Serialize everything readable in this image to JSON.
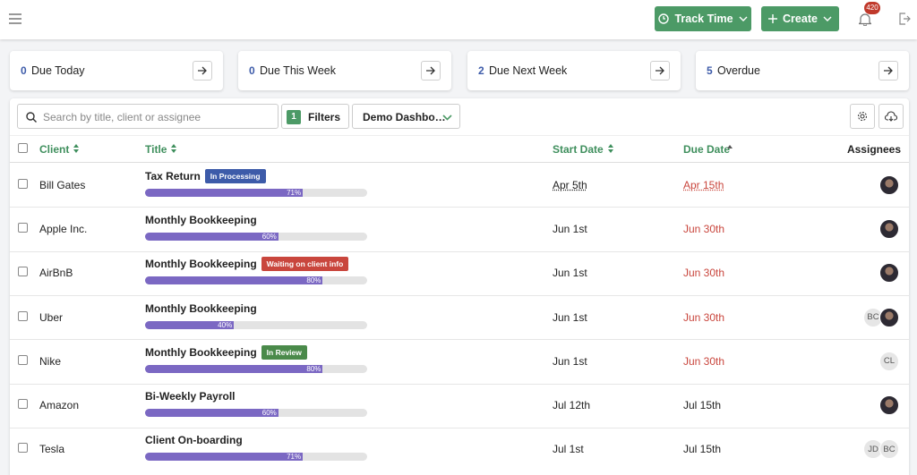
{
  "header": {
    "track_time": "Track Time",
    "create": "Create",
    "notification_count": 420
  },
  "summary": [
    {
      "count": 0,
      "label": "Due Today"
    },
    {
      "count": 0,
      "label": "Due This Week"
    },
    {
      "count": 2,
      "label": "Due Next Week"
    },
    {
      "count": 5,
      "label": "Overdue"
    }
  ],
  "toolbar": {
    "search_placeholder": "Search by title, client or assignee",
    "filter_count": 1,
    "filters": "Filters",
    "dashboard": "Demo Dashbo…"
  },
  "table": {
    "columns": [
      "Client",
      "Title",
      "Start Date",
      "Due Date",
      "Assignees"
    ],
    "rows": [
      {
        "client": "Bill Gates",
        "title": "Tax Return",
        "status": "In Processing",
        "progress": 71,
        "progress_label": "71%",
        "start_date": "Apr 5th",
        "due_date": "Apr 15th"
      },
      {
        "client": "Apple Inc.",
        "title": "Monthly Bookkeeping",
        "progress": 60,
        "progress_label": "60%",
        "start_date": "Jun 1st",
        "due_date": "Jun 30th"
      },
      {
        "client": "AirBnB",
        "title": "Monthly Bookkeeping",
        "status": "Waiting on client info",
        "progress": 80,
        "progress_label": "80%",
        "start_date": "Jun 1st",
        "due_date": "Jun 30th"
      },
      {
        "client": "Uber",
        "title": "Monthly Bookkeeping",
        "progress": 40,
        "progress_label": "40%",
        "start_date": "Jun 1st",
        "due_date": "Jun 30th",
        "assignees": [
          "BC"
        ]
      },
      {
        "client": "Nike",
        "title": "Monthly Bookkeeping",
        "status": "In Review",
        "progress": 80,
        "progress_label": "80%",
        "start_date": "Jun 1st",
        "due_date": "Jun 30th",
        "assignees": [
          "CL"
        ]
      },
      {
        "client": "Amazon",
        "title": "Bi-Weekly Payroll",
        "progress": 60,
        "progress_label": "60%",
        "start_date": "Jul 12th",
        "due_date": "Jul 15th"
      },
      {
        "client": "Tesla",
        "title": "Client On-boarding",
        "progress": 71,
        "progress_label": "71%",
        "start_date": "Jul 1st",
        "due_date": "Jul 15th",
        "assignees": [
          "JD",
          "BC"
        ]
      }
    ]
  }
}
